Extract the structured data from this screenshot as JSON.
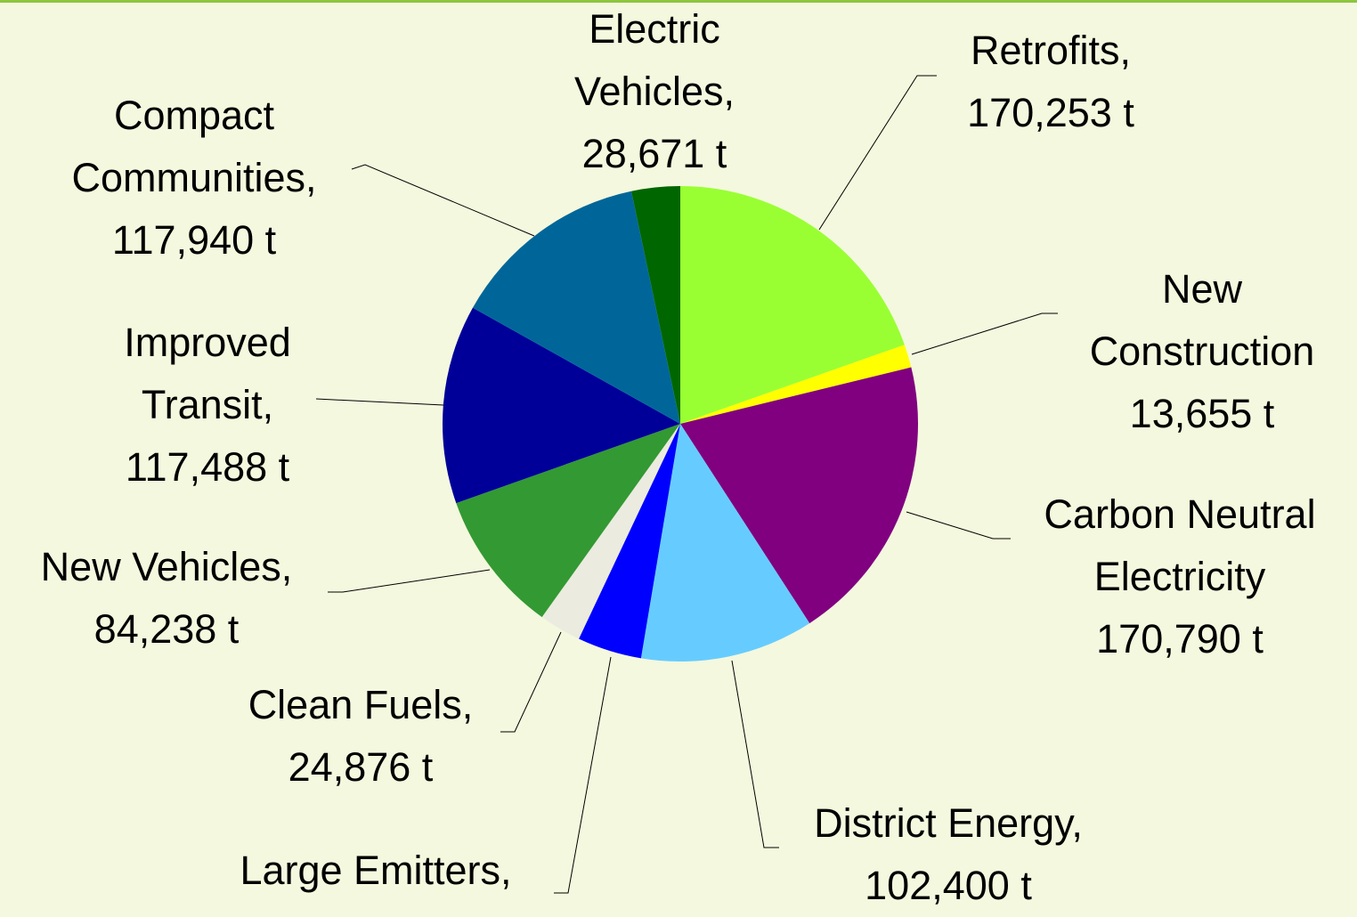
{
  "chart_data": {
    "type": "pie",
    "categories": [
      "Retrofits,",
      "New Construction",
      "Carbon Neutral Electricity",
      "District Energy,",
      "Large Emitters,",
      "Clean Fuels,",
      "New Vehicles,",
      "Improved Transit,",
      "Compact Communities,",
      "Electric Vehicles,"
    ],
    "values": [
      170253,
      13655,
      170790,
      102400,
      38000,
      24876,
      84238,
      117488,
      117940,
      28671
    ],
    "value_labels": [
      "170,253 t",
      "13,655 t",
      "170,790 t",
      "102,400 t",
      null,
      "24,876 t",
      "84,238 t",
      "117,488 t",
      "117,940 t",
      "28,671 t"
    ],
    "colors": [
      "#99ff33",
      "#ffff00",
      "#800080",
      "#66ccff",
      "#0000ff",
      "#ebebdf",
      "#339933",
      "#000099",
      "#006699",
      "#006600"
    ]
  }
}
